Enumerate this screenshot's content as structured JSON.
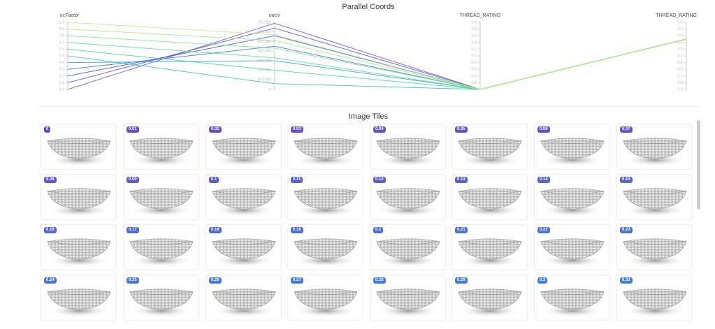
{
  "chart_data": {
    "type": "parallel",
    "title": "Parallel Coords",
    "axes": [
      {
        "label": "in:Factor",
        "lim": [
          0,
          1
        ],
        "ticks": [
          {
            "value": 1,
            "label": "1.0"
          },
          0.9,
          0.8,
          0.7,
          0.6,
          0.5,
          0.4,
          0.3,
          0.2,
          0.1,
          {
            "value": 0,
            "label": "0.0"
          }
        ]
      },
      {
        "label": "out:V",
        "lim": [
          0,
          700000
        ],
        "ticks": [
          0,
          {
            "value": 100000,
            "label": "100,000"
          },
          {
            "value": 200000,
            "label": "200,000"
          },
          {
            "value": 300000,
            "label": "300,000"
          },
          {
            "value": 400000,
            "label": "400,000"
          },
          {
            "value": 500000,
            "label": "500,000"
          },
          {
            "value": 600000,
            "label": "600,000"
          },
          {
            "value": 700000,
            "label": "700,000"
          }
        ]
      },
      {
        "label": "THREAD_RATING",
        "lim": [
          -1,
          1
        ],
        "ticks": [
          {
            "value": 1,
            "label": "1.0"
          },
          0.8,
          0.6,
          0.4,
          0.2,
          {
            "value": 0,
            "label": "0.0"
          },
          -0.2,
          -0.4,
          -0.6,
          -0.8,
          {
            "value": -1,
            "label": "-1.0"
          }
        ]
      },
      {
        "label": "THREAD_RATING",
        "lim": [
          -1,
          1
        ],
        "ticks": [
          {
            "value": 1,
            "label": "1.0"
          },
          0.8,
          0.6,
          0.4,
          0.2,
          {
            "value": 0,
            "label": "0.0"
          },
          -0.2,
          -0.4,
          -0.6,
          -0.8,
          {
            "value": -1,
            "label": "-1.0"
          }
        ]
      }
    ],
    "records": [
      {
        "color": "#7a45d8",
        "values": [
          0,
          690000,
          -1,
          0.5
        ]
      },
      {
        "color": "#5a4ee0",
        "values": [
          0.1,
          640000,
          -1,
          0.5
        ]
      },
      {
        "color": "#3f55e2",
        "values": [
          0.2,
          560000,
          -1,
          0.5
        ]
      },
      {
        "color": "#3a6fe0",
        "values": [
          0.3,
          450000,
          -1,
          0.5
        ]
      },
      {
        "color": "#2f9ad8",
        "values": [
          0.4,
          300000,
          -1,
          0.5
        ]
      },
      {
        "color": "#2ec4c4",
        "values": [
          0.5,
          60000,
          -1,
          0.5
        ]
      },
      {
        "color": "#3ad8a8",
        "values": [
          0.6,
          200000,
          -1,
          0.5
        ]
      },
      {
        "color": "#55e090",
        "values": [
          0.7,
          330000,
          -1,
          0.5
        ]
      },
      {
        "color": "#7ce682",
        "values": [
          0.8,
          430000,
          -1,
          0.5
        ]
      },
      {
        "color": "#9bec7c",
        "values": [
          0.9,
          510000,
          -1,
          0.5
        ]
      },
      {
        "color": "#b8f07a",
        "values": [
          1,
          570000,
          -1,
          0.5
        ]
      }
    ]
  },
  "image_tiles": {
    "title": "Image Tiles",
    "labels": [
      "0",
      "0.01",
      "0.02",
      "0.03",
      "0.04",
      "0.05",
      "0.06",
      "0.07",
      "0.08",
      "0.09",
      "0.1",
      "0.11",
      "0.12",
      "0.13",
      "0.14",
      "0.15",
      "0.16",
      "0.17",
      "0.18",
      "0.19",
      "0.2",
      "0.21",
      "0.22",
      "0.23",
      "0.24",
      "0.25",
      "0.26",
      "0.27",
      "0.28",
      "0.29",
      "0.3",
      "0.31"
    ]
  }
}
